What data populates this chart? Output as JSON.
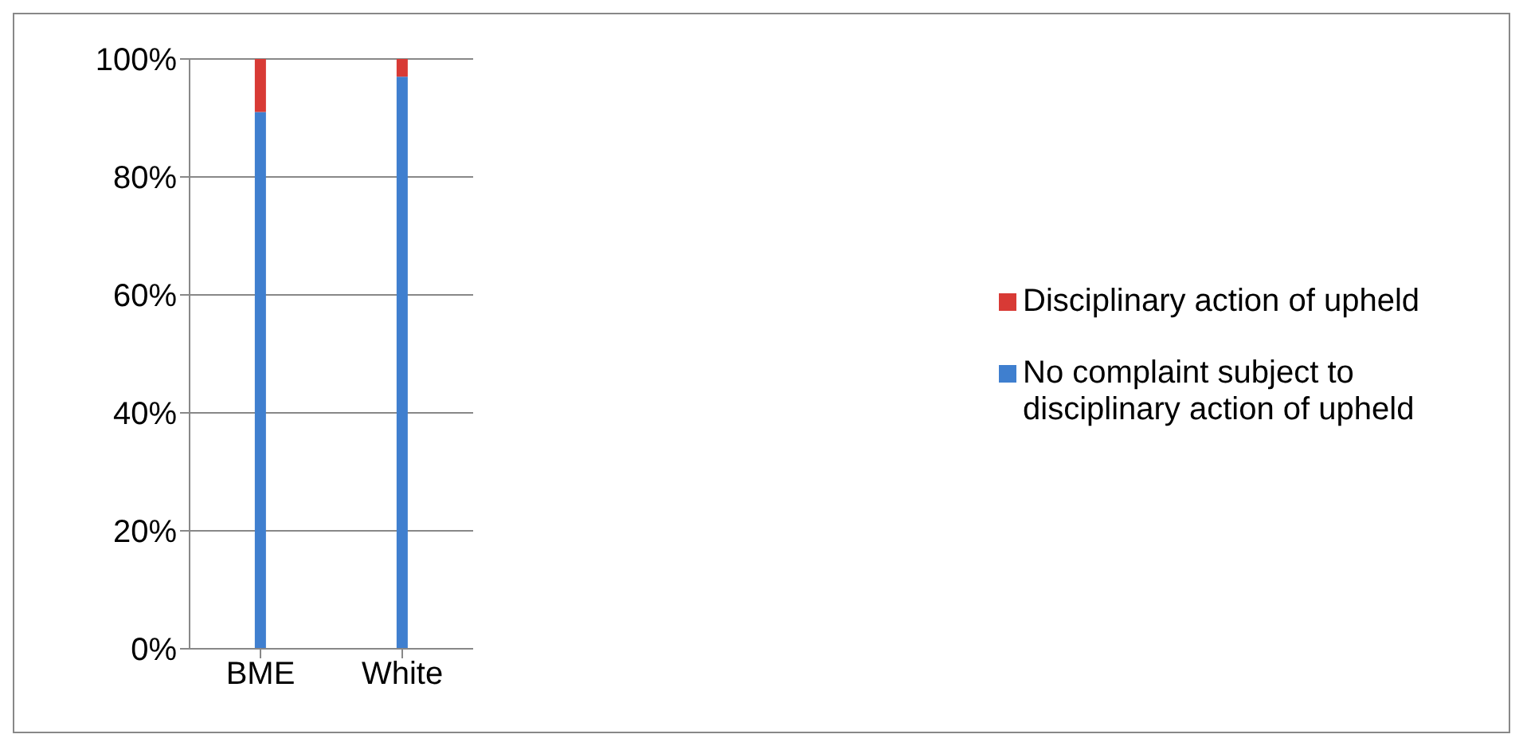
{
  "chart_data": {
    "type": "bar",
    "stacked": true,
    "categories": [
      "BME",
      "White"
    ],
    "series": [
      {
        "name": "No complaint subject to disciplinary action of upheld",
        "color": "#3f7fcf",
        "values": [
          91,
          97
        ]
      },
      {
        "name": "Disciplinary action of upheld",
        "color": "#d83a35",
        "values": [
          9,
          3
        ]
      }
    ],
    "ylim": [
      0,
      100
    ],
    "yticks": [
      {
        "value": 0,
        "label": "0%"
      },
      {
        "value": 20,
        "label": "20%"
      },
      {
        "value": 40,
        "label": "40%"
      },
      {
        "value": 60,
        "label": "60%"
      },
      {
        "value": 80,
        "label": "80%"
      },
      {
        "value": 100,
        "label": "100%"
      }
    ],
    "grid": "y",
    "legend": "right"
  }
}
